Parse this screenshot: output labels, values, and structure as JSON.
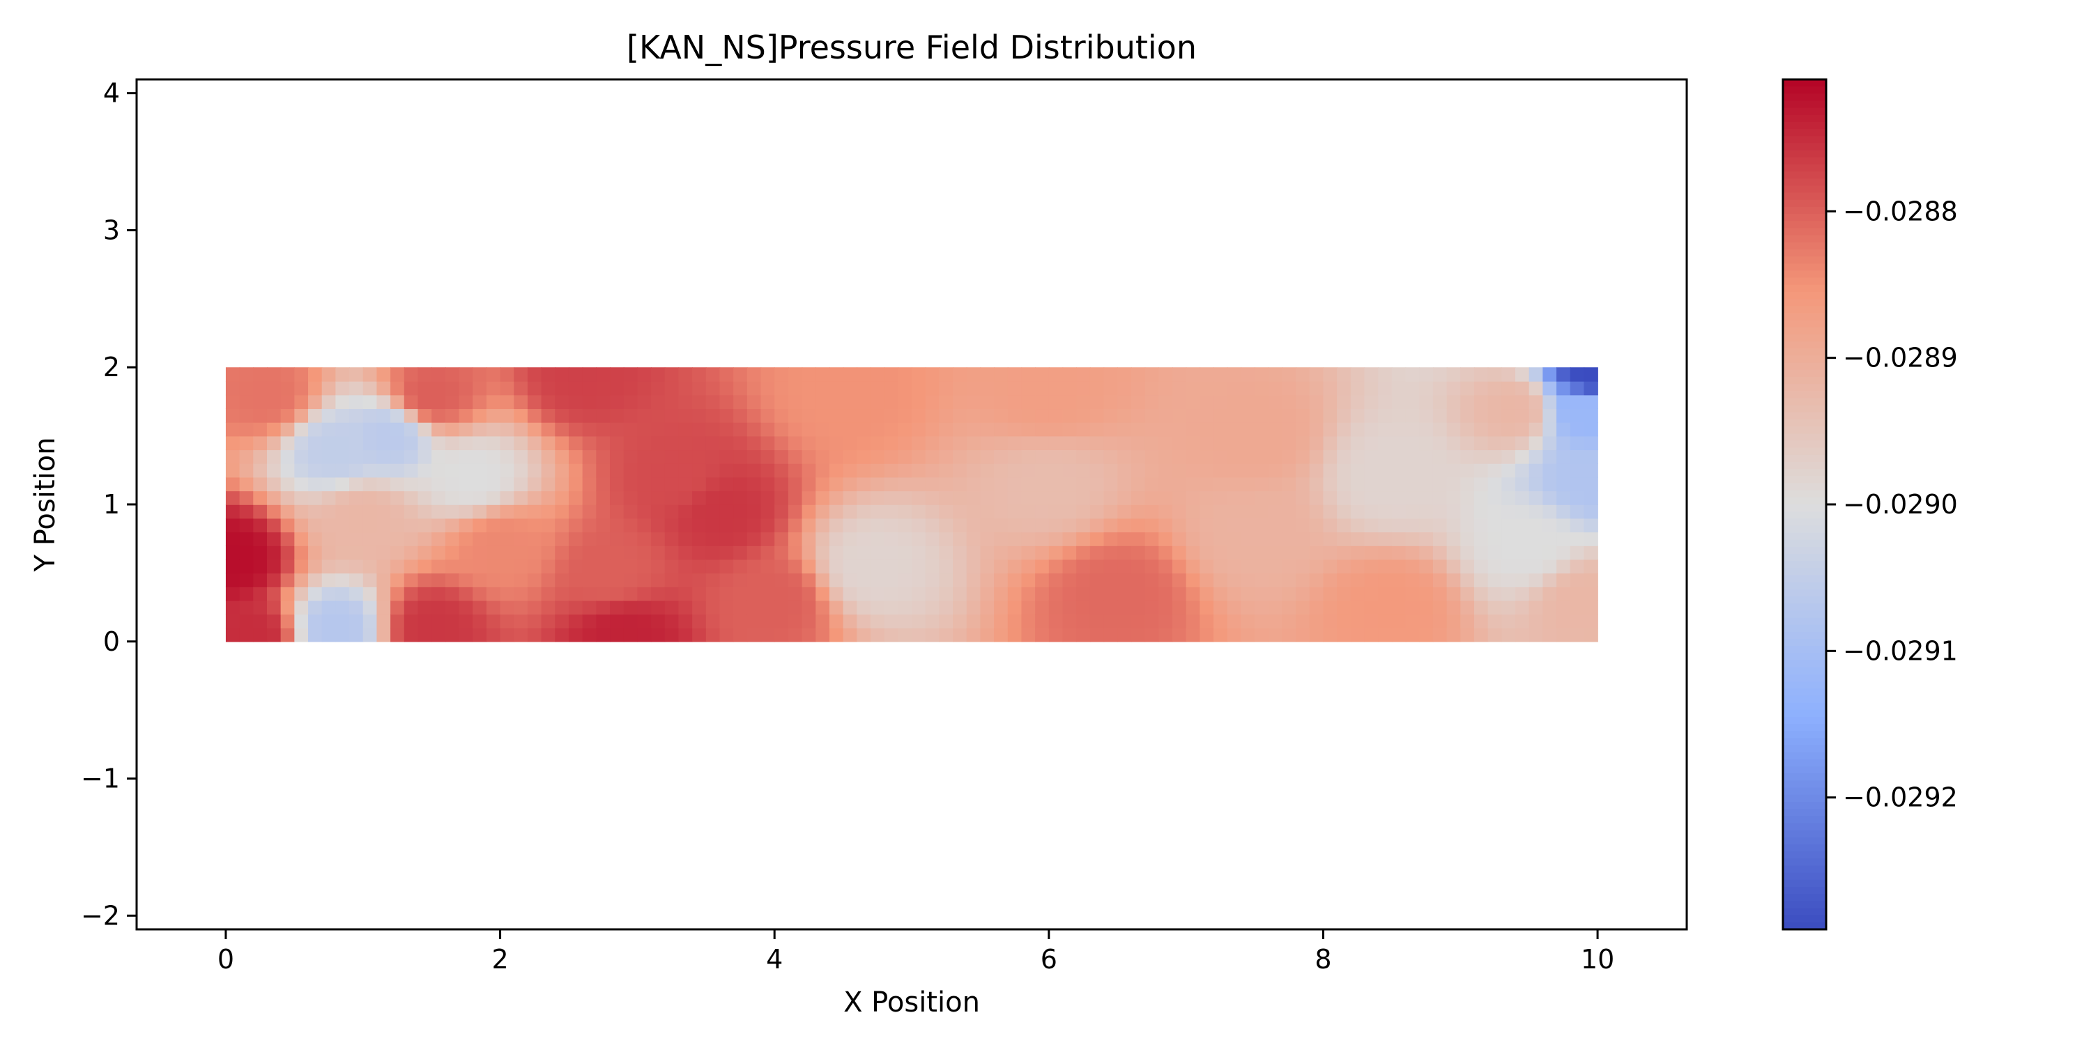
{
  "chart_data": {
    "type": "heatmap",
    "title": "[KAN_NS]Pressure Field Distribution",
    "xlabel": "X Position",
    "ylabel": "Y Position",
    "xlim": [
      -0.65,
      10.65
    ],
    "ylim": [
      -2.1,
      4.1
    ],
    "x_ticks": [
      0,
      2,
      4,
      6,
      8,
      10
    ],
    "x_tick_labels": [
      "0",
      "2",
      "4",
      "6",
      "8",
      "10"
    ],
    "y_ticks": [
      -2,
      -1,
      0,
      1,
      2,
      3,
      4
    ],
    "y_tick_labels": [
      "−2",
      "−1",
      "0",
      "1",
      "2",
      "3",
      "4"
    ],
    "grid": false,
    "colormap": "coolwarm",
    "domain": {
      "x": [
        0,
        10
      ],
      "y": [
        0,
        2
      ]
    },
    "grid_resolution": {
      "nx": 100,
      "ny": 20
    },
    "colorbar": {
      "min": -0.02929,
      "max": -0.02871,
      "ticks": [
        -0.0288,
        -0.0289,
        -0.029,
        -0.0291,
        -0.0292
      ],
      "tick_labels": [
        "−0.0288",
        "−0.0289",
        "−0.0290",
        "−0.0291",
        "−0.0292"
      ]
    },
    "field_samples": [
      {
        "x": 0.05,
        "y": 0.6,
        "p": -0.02872
      },
      {
        "x": 0.2,
        "y": 0.05,
        "p": -0.02875
      },
      {
        "x": 0.3,
        "y": 1.8,
        "p": -0.02882
      },
      {
        "x": 0.8,
        "y": 1.4,
        "p": -0.02905
      },
      {
        "x": 0.8,
        "y": 0.1,
        "p": -0.02907
      },
      {
        "x": 1.2,
        "y": 1.5,
        "p": -0.02906
      },
      {
        "x": 1.0,
        "y": 0.9,
        "p": -0.02892
      },
      {
        "x": 1.5,
        "y": 0.1,
        "p": -0.02876
      },
      {
        "x": 1.5,
        "y": 1.8,
        "p": -0.0288
      },
      {
        "x": 1.8,
        "y": 1.2,
        "p": -0.029
      },
      {
        "x": 2.0,
        "y": 0.7,
        "p": -0.02884
      },
      {
        "x": 2.6,
        "y": 1.95,
        "p": -0.02877
      },
      {
        "x": 2.8,
        "y": 0.5,
        "p": -0.0288
      },
      {
        "x": 2.9,
        "y": 0.05,
        "p": -0.02874
      },
      {
        "x": 3.3,
        "y": 1.2,
        "p": -0.02878
      },
      {
        "x": 3.6,
        "y": 0.95,
        "p": -0.02876
      },
      {
        "x": 4.0,
        "y": 0.3,
        "p": -0.0288
      },
      {
        "x": 4.7,
        "y": 0.55,
        "p": -0.02898
      },
      {
        "x": 4.5,
        "y": 1.8,
        "p": -0.02885
      },
      {
        "x": 6.0,
        "y": 1.8,
        "p": -0.02887
      },
      {
        "x": 6.0,
        "y": 1.15,
        "p": -0.02893
      },
      {
        "x": 6.5,
        "y": 0.35,
        "p": -0.02881
      },
      {
        "x": 7.5,
        "y": 1.5,
        "p": -0.02889
      },
      {
        "x": 7.5,
        "y": 0.8,
        "p": -0.02891
      },
      {
        "x": 8.5,
        "y": 1.2,
        "p": -0.02898
      },
      {
        "x": 8.5,
        "y": 0.25,
        "p": -0.02886
      },
      {
        "x": 9.5,
        "y": 0.7,
        "p": -0.029
      },
      {
        "x": 9.4,
        "y": 1.7,
        "p": -0.02892
      },
      {
        "x": 9.95,
        "y": 1.95,
        "p": -0.02929
      },
      {
        "x": 9.9,
        "y": 1.7,
        "p": -0.02912
      },
      {
        "x": 9.95,
        "y": 1.2,
        "p": -0.02908
      },
      {
        "x": 9.9,
        "y": 0.3,
        "p": -0.02892
      }
    ]
  }
}
